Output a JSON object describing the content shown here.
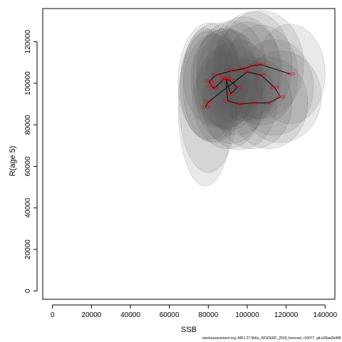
{
  "chart_data": {
    "type": "scatter",
    "title": "",
    "xlabel": "SSB",
    "ylabel": "R(age 5)",
    "xlim": [
      -5000,
      145000
    ],
    "ylim": [
      -4000,
      136000
    ],
    "x_ticks": [
      0,
      20000,
      40000,
      60000,
      80000,
      100000,
      120000,
      140000
    ],
    "y_ticks": [
      0,
      20000,
      40000,
      60000,
      80000,
      100000,
      120000
    ],
    "grid": false,
    "legend": "none",
    "line_color": "#000000",
    "label_color": "#e8000b",
    "ellipse_fill": "#555555",
    "points": [
      {
        "year": "2000",
        "x": 122000,
        "y": 104500,
        "sx": 9000,
        "sy": 12000
      },
      {
        "year": "2001",
        "x": 107000,
        "y": 109000,
        "sx": 11000,
        "sy": 13000
      },
      {
        "year": "2002",
        "x": 103000,
        "y": 108500,
        "sx": 10000,
        "sy": 13000
      },
      {
        "year": "2003",
        "x": 98000,
        "y": 107000,
        "sx": 9500,
        "sy": 12500
      },
      {
        "year": "2004",
        "x": 92000,
        "y": 106000,
        "sx": 9000,
        "sy": 12000
      },
      {
        "year": "2005",
        "x": 84000,
        "y": 104000,
        "sx": 8500,
        "sy": 12500
      },
      {
        "year": "2006",
        "x": 80500,
        "y": 101000,
        "sx": 8000,
        "sy": 14000
      },
      {
        "year": "2007",
        "x": 81500,
        "y": 99000,
        "sx": 8000,
        "sy": 13500
      },
      {
        "year": "2008",
        "x": 83000,
        "y": 97500,
        "sx": 8000,
        "sy": 13000
      },
      {
        "year": "2009",
        "x": 88000,
        "y": 102000,
        "sx": 8500,
        "sy": 12000
      },
      {
        "year": "2010",
        "x": 91000,
        "y": 101500,
        "sx": 8500,
        "sy": 12000
      },
      {
        "year": "2011",
        "x": 95000,
        "y": 98000,
        "sx": 9000,
        "sy": 11500
      },
      {
        "year": "2012",
        "x": 91500,
        "y": 95000,
        "sx": 9000,
        "sy": 12000
      },
      {
        "year": "2013",
        "x": 89000,
        "y": 102500,
        "sx": 8500,
        "sy": 12000
      },
      {
        "year": "2014",
        "x": 90000,
        "y": 91500,
        "sx": 9000,
        "sy": 11500
      },
      {
        "year": "2015",
        "x": 96000,
        "y": 90000,
        "sx": 9500,
        "sy": 11000
      },
      {
        "year": "2016",
        "x": 103000,
        "y": 90500,
        "sx": 10000,
        "sy": 11000
      },
      {
        "year": "2017",
        "x": 111000,
        "y": 90500,
        "sx": 10000,
        "sy": 11000
      },
      {
        "year": "2018",
        "x": 117000,
        "y": 93500,
        "sx": 10500,
        "sy": 11000
      },
      {
        "year": "2019",
        "x": 114000,
        "y": 98000,
        "sx": 10000,
        "sy": 11500
      },
      {
        "year": "2020",
        "x": 107000,
        "y": 104000,
        "sx": 9500,
        "sy": 12000
      },
      {
        "year": "2021",
        "x": 100000,
        "y": 105500,
        "sx": 9000,
        "sy": 12000
      },
      {
        "year": "2022",
        "x": 80000,
        "y": 91000,
        "sx": 7500,
        "sy": 17000
      },
      {
        "year": "2023",
        "x": 78500,
        "y": 88500,
        "sx": 7000,
        "sy": 19000
      }
    ]
  },
  "source_note": "stockassessment.org, ARU.27.5b6a_WGDEEP_2024_forecast, r16077, git:e38aa2b4989"
}
